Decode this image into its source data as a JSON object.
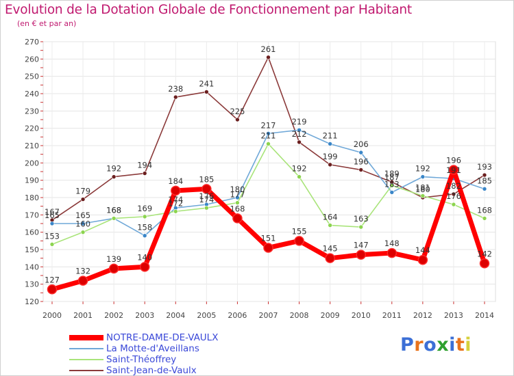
{
  "title": "Evolution de la Dotation Globale de Fonctionnement par Habitant",
  "subtitle": "(en € et par an)",
  "logo": {
    "text": "Proxiti",
    "colors": [
      "#3c6fd6",
      "#e9731c",
      "#3c6fd6",
      "#2fa02f",
      "#3c6fd6",
      "#e9731c",
      "#d6d13c"
    ]
  },
  "chart_data": {
    "type": "line",
    "title": "Evolution de la Dotation Globale de Fonctionnement par Habitant",
    "subtitle": "(en € et par an)",
    "xlabel": "",
    "ylabel": "",
    "x": [
      "2000",
      "2001",
      "2002",
      "2003",
      "2004",
      "2005",
      "2006",
      "2007",
      "2008",
      "2009",
      "2010",
      "2011",
      "2012",
      "2013",
      "2014"
    ],
    "ylim": [
      120,
      270
    ],
    "yticks": [
      120,
      130,
      140,
      150,
      160,
      170,
      180,
      190,
      200,
      210,
      220,
      230,
      240,
      250,
      260,
      270
    ],
    "grid": true,
    "legend_position": "bottom-left",
    "series": [
      {
        "name": "NOTRE-DAME-DE-VAULX",
        "color": "#ff0000",
        "marker_color": "#dd0000",
        "emphasis": true,
        "values": [
          127,
          132,
          139,
          140,
          184,
          185,
          168,
          151,
          155,
          145,
          147,
          148,
          144,
          196,
          142
        ]
      },
      {
        "name": "La Motte-d'Aveillans",
        "color": "#6fa8d8",
        "marker_color": "#3a86c8",
        "values": [
          165,
          165,
          168,
          158,
          174,
          176,
          180,
          217,
          219,
          211,
          206,
          183,
          192,
          191,
          185
        ]
      },
      {
        "name": "Saint-Théoffrey",
        "color": "#a9e47a",
        "marker_color": "#8cd44f",
        "values": [
          153,
          160,
          168,
          169,
          172,
          174,
          177,
          211,
          192,
          164,
          163,
          187,
          181,
          176,
          168
        ]
      },
      {
        "name": "Saint-Jean-de-Vaulx",
        "color": "#8b3a3a",
        "marker_color": "#6b1f1f",
        "values": [
          167,
          179,
          192,
          194,
          238,
          241,
          225,
          261,
          212,
          199,
          196,
          189,
          180,
          182,
          193
        ]
      }
    ],
    "data_labels": [
      [
        "127",
        "132",
        "139",
        "140",
        "184",
        "185",
        "168",
        "151",
        "155",
        "145",
        "147",
        "148",
        "144",
        "196",
        "142"
      ],
      [
        "165",
        "165",
        "168",
        "158",
        "174",
        "176",
        "180",
        "217",
        "219",
        "211",
        "206",
        "183",
        "192",
        "191",
        "185"
      ],
      [
        "153",
        "160",
        "168",
        "169",
        "172",
        "174",
        "177",
        "211",
        "192",
        "164",
        "163",
        "187",
        "181",
        "176",
        "168"
      ],
      [
        "167",
        "179",
        "192",
        "194",
        "238",
        "241",
        "225",
        "261",
        "212",
        "199",
        "196",
        "189",
        "180",
        "182",
        "193"
      ]
    ]
  }
}
